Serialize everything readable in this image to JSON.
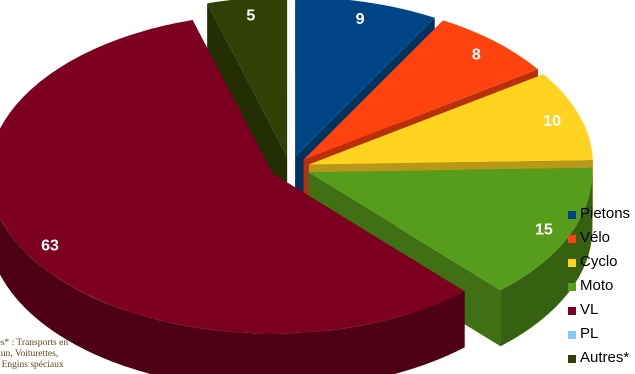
{
  "chart_data": {
    "type": "pie",
    "title": "",
    "categories": [
      "Pietons",
      "Vélo",
      "Cyclo",
      "Moto",
      "VL",
      "PL",
      "Autres*"
    ],
    "values": [
      9,
      8,
      10,
      15,
      63,
      0,
      5
    ],
    "data_labels": [
      "9",
      "8",
      "10",
      "15",
      "63",
      "",
      "5"
    ],
    "colors": [
      "#004586",
      "#ff420e",
      "#ffd320",
      "#579d1c",
      "#7e0021",
      "#83caff",
      "#314004"
    ],
    "exploded": true,
    "three_d": true,
    "legend_position": "right"
  },
  "legend": {
    "items": [
      {
        "label": "Pietons",
        "color": "#004586"
      },
      {
        "label": "Vélo",
        "color": "#ff420e"
      },
      {
        "label": "Cyclo",
        "color": "#ffd320"
      },
      {
        "label": "Moto",
        "color": "#579d1c"
      },
      {
        "label": "VL",
        "color": "#7e0021"
      },
      {
        "label": "PL",
        "color": "#83caff"
      },
      {
        "label": "Autres*",
        "color": "#314004"
      }
    ]
  },
  "footnote": {
    "lines": [
      "utres* : Transports en",
      "mmun,  Voiturettes,",
      "nds Engins spéciaux"
    ]
  }
}
